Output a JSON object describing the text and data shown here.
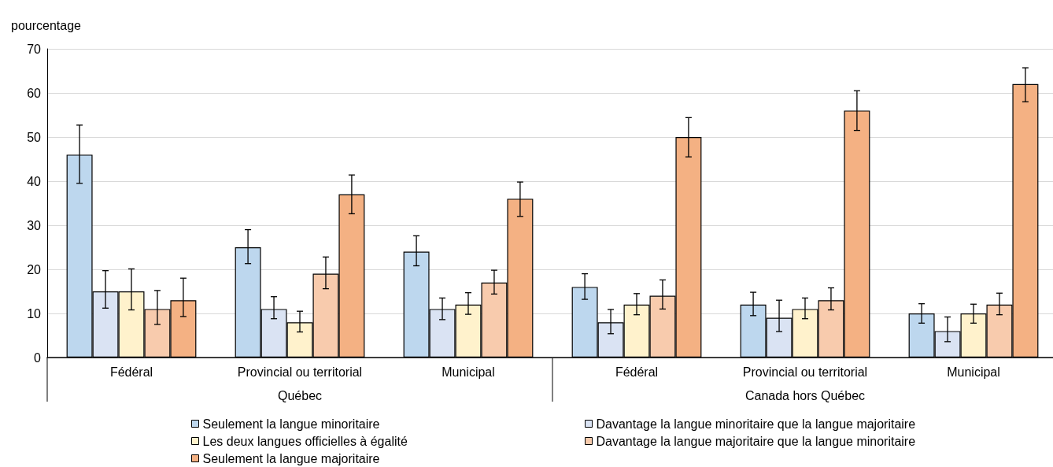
{
  "chart_data": {
    "type": "bar",
    "ylabel": "pourcentage",
    "categories": [
      "Fédéral",
      "Provincial ou territorial",
      "Municipal",
      "Fédéral",
      "Provincial ou territorial",
      "Municipal"
    ],
    "annotations": [
      "Québec",
      "Canada hors Québec"
    ],
    "series": [
      {
        "name": "Seulement la langue minoritaire",
        "color": "#bdd7ee",
        "values": [
          46,
          25,
          24,
          16,
          12,
          10
        ],
        "errors": [
          [
            39.5,
            52.7
          ],
          [
            21.3,
            29
          ],
          [
            20.8,
            27.6
          ],
          [
            13.2,
            19
          ],
          [
            9.5,
            14.8
          ],
          [
            7.8,
            12.2
          ]
        ]
      },
      {
        "name": "Davantage la langue minoritaire que la langue majoritaire",
        "color": "#dae3f3",
        "values": [
          15,
          11,
          11,
          8,
          9,
          6
        ],
        "errors": [
          [
            11.2,
            19.7
          ],
          [
            8.8,
            13.8
          ],
          [
            8.6,
            13.5
          ],
          [
            5.4,
            10.9
          ],
          [
            5.9,
            13
          ],
          [
            3.6,
            9.2
          ]
        ]
      },
      {
        "name": "Les deux langues officielles à égalité",
        "color": "#fff2cc",
        "values": [
          15,
          8,
          12,
          12,
          11,
          10
        ],
        "errors": [
          [
            10.8,
            20.1
          ],
          [
            5.8,
            10.5
          ],
          [
            9.8,
            14.7
          ],
          [
            9.7,
            14.5
          ],
          [
            8.8,
            13.5
          ],
          [
            7.8,
            12.1
          ]
        ]
      },
      {
        "name": "Davantage la langue majoritaire que la langue minoritaire",
        "color": "#f8cbad",
        "values": [
          11,
          19,
          17,
          14,
          13,
          12
        ],
        "errors": [
          [
            7.5,
            15.2
          ],
          [
            15.6,
            22.8
          ],
          [
            14.4,
            19.8
          ],
          [
            11,
            17.6
          ],
          [
            10.8,
            15.8
          ],
          [
            9.7,
            14.6
          ]
        ]
      },
      {
        "name": "Seulement la langue majoritaire",
        "color": "#f4b183",
        "values": [
          13,
          37,
          36,
          50,
          56,
          62
        ],
        "errors": [
          [
            9.3,
            18
          ],
          [
            32.6,
            41.4
          ],
          [
            32,
            39.8
          ],
          [
            45.5,
            54.4
          ],
          [
            51.5,
            60.5
          ],
          [
            58,
            65.7
          ]
        ]
      }
    ],
    "ylim": [
      0,
      70
    ],
    "yticks": [
      0,
      10,
      20,
      30,
      40,
      50,
      60,
      70
    ],
    "grid": "y",
    "legend": "bottom"
  }
}
